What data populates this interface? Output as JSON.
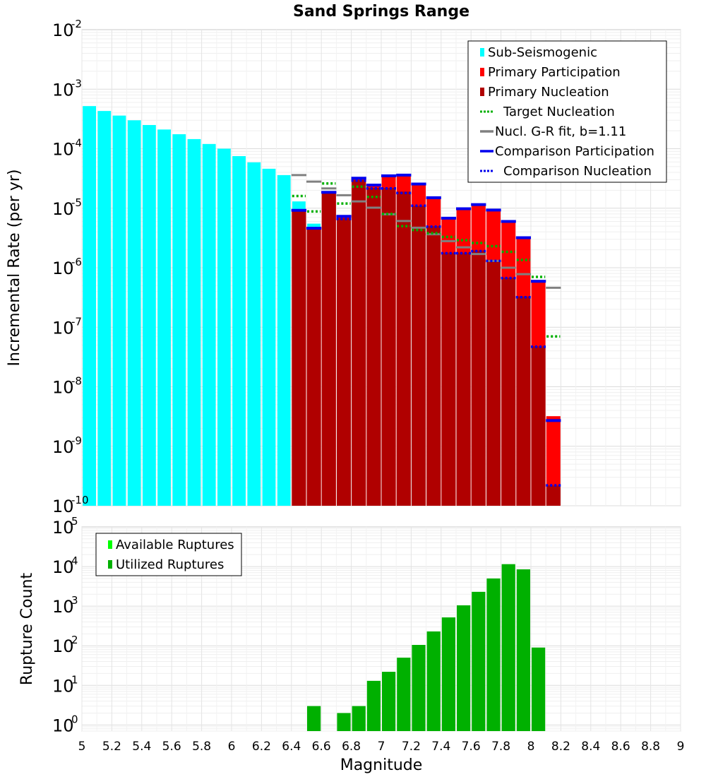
{
  "chart_data": [
    {
      "type": "bar",
      "title": "Sand Springs Range",
      "xlabel": "",
      "ylabel": "Incremental Rate (per yr)",
      "yscale": "log",
      "ylim": [
        1e-10,
        0.01
      ],
      "xlim": [
        5,
        9
      ],
      "y_ticks": [
        {
          "base": "10",
          "exp": "-10"
        },
        {
          "base": "10",
          "exp": "-9"
        },
        {
          "base": "10",
          "exp": "-8"
        },
        {
          "base": "10",
          "exp": "-7"
        },
        {
          "base": "10",
          "exp": "-6"
        },
        {
          "base": "10",
          "exp": "-5"
        },
        {
          "base": "10",
          "exp": "-4"
        },
        {
          "base": "10",
          "exp": "-3"
        },
        {
          "base": "10",
          "exp": "-2"
        }
      ],
      "legend": {
        "location": "top-right",
        "entries": [
          {
            "label": "Sub-Seismogenic",
            "color": "#00ffff",
            "style": "bar"
          },
          {
            "label": "Primary Participation",
            "color": "#ff0000",
            "style": "bar"
          },
          {
            "label": "Primary Nucleation",
            "color": "#b00000",
            "style": "bar"
          },
          {
            "label": "Target Nucleation",
            "color": "#00b000",
            "style": "dotted"
          },
          {
            "label": "Nucl. G-R fit, b=1.11",
            "color": "#808080",
            "style": "solid"
          },
          {
            "label": "Comparison Participation",
            "color": "#0000ee",
            "style": "solid"
          },
          {
            "label": "Comparison Nucleation",
            "color": "#0000ee",
            "style": "dotted"
          }
        ]
      },
      "series": [
        {
          "name": "Sub-Seismogenic",
          "color": "#00ffff",
          "x": [
            5.05,
            5.15,
            5.25,
            5.35,
            5.45,
            5.55,
            5.65,
            5.75,
            5.85,
            5.95,
            6.05,
            6.15,
            6.25,
            6.35,
            6.45,
            6.55
          ],
          "values": [
            0.00052,
            0.00043,
            0.00036,
            0.0003,
            0.00025,
            0.00021,
            0.000175,
            0.000145,
            0.00012,
            0.0001,
            7.5e-05,
            5.9e-05,
            4.6e-05,
            3.6e-05,
            1.3e-05,
            5.5e-06
          ]
        },
        {
          "name": "Primary Participation",
          "color": "#ff0000",
          "x": [
            6.45,
            6.55,
            6.65,
            6.75,
            6.85,
            6.95,
            7.05,
            7.15,
            7.25,
            7.35,
            7.45,
            7.55,
            7.65,
            7.75,
            7.85,
            7.95,
            8.05,
            8.15
          ],
          "values": [
            9.5e-06,
            4.7e-06,
            1.9e-05,
            7.5e-06,
            3.3e-05,
            2.5e-05,
            3.6e-05,
            3.7e-05,
            2.6e-05,
            1.55e-05,
            7e-06,
            1e-05,
            1.15e-05,
            9.5e-06,
            6.2e-06,
            3.3e-06,
            6e-07,
            3.2e-09
          ]
        },
        {
          "name": "Primary Nucleation",
          "color": "#b00000",
          "x": [
            6.45,
            6.55,
            6.65,
            6.75,
            6.85,
            6.95,
            7.05,
            7.15,
            7.25,
            7.35,
            7.45,
            7.55,
            7.65,
            7.75,
            7.85,
            7.95,
            8.05,
            8.15
          ],
          "values": [
            9.5e-06,
            4.7e-06,
            1.9e-05,
            6.8e-06,
            3e-05,
            2.2e-05,
            2.2e-05,
            1.9e-05,
            1.1e-05,
            5e-06,
            1.8e-06,
            1.8e-06,
            1.95e-06,
            1.3e-06,
            6.8e-07,
            3.3e-07,
            4.8e-08,
            2.2e-10
          ]
        },
        {
          "name": "Target Nucleation",
          "color": "#00b000",
          "x": [
            6.45,
            6.55,
            6.65,
            6.75,
            6.85,
            6.95,
            7.05,
            7.15,
            7.25,
            7.35,
            7.45,
            7.55,
            7.65,
            7.75,
            7.85,
            7.95,
            8.05,
            8.15
          ],
          "values": [
            1.6e-05,
            8.8e-06,
            2.6e-05,
            1.2e-05,
            2.3e-05,
            1.55e-05,
            8e-06,
            5e-06,
            4.3e-06,
            3.8e-06,
            3.3e-06,
            2.9e-06,
            2.6e-06,
            2.3e-06,
            1.85e-06,
            1.35e-06,
            7e-07,
            7e-08
          ]
        },
        {
          "name": "Nucl. G-R fit, b=1.11",
          "color": "#808080",
          "x": [
            6.45,
            6.55,
            6.65,
            6.75,
            6.85,
            6.95,
            7.05,
            7.15,
            7.25,
            7.35,
            7.45,
            7.55,
            7.65,
            7.75,
            7.85,
            7.95,
            8.05,
            8.15
          ],
          "values": [
            3.6e-05,
            2.8e-05,
            2.15e-05,
            1.65e-05,
            1.3e-05,
            1.02e-05,
            7.9e-06,
            6.1e-06,
            4.7e-06,
            3.65e-06,
            2.8e-06,
            2.2e-06,
            1.7e-06,
            1.3e-06,
            1e-06,
            7.8e-07,
            6e-07,
            4.6e-07
          ]
        },
        {
          "name": "Comparison Participation",
          "color": "#0000ee",
          "x": [
            6.45,
            6.55,
            6.65,
            6.75,
            6.85,
            6.95,
            7.05,
            7.15,
            7.25,
            7.35,
            7.45,
            7.55,
            7.65,
            7.75,
            7.85,
            7.95,
            8.05,
            8.15
          ],
          "values": [
            9.2e-06,
            4.6e-06,
            1.85e-05,
            7.3e-06,
            3.2e-05,
            2.45e-05,
            3.5e-05,
            3.6e-05,
            2.55e-05,
            1.5e-05,
            6.8e-06,
            9.8e-06,
            1.15e-05,
            9.3e-06,
            6e-06,
            3.2e-06,
            5.9e-07,
            2.7e-09
          ]
        },
        {
          "name": "Comparison Nucleation",
          "color": "#0000ee",
          "x": [
            6.45,
            6.55,
            6.65,
            6.75,
            6.85,
            6.95,
            7.05,
            7.15,
            7.25,
            7.35,
            7.45,
            7.55,
            7.65,
            7.75,
            7.85,
            7.95,
            8.05,
            8.15
          ],
          "values": [
            9.2e-06,
            4.6e-06,
            1.85e-05,
            6.6e-06,
            2.9e-05,
            2.15e-05,
            2.15e-05,
            1.8e-05,
            1.1e-05,
            4.9e-06,
            1.75e-06,
            1.75e-06,
            1.9e-06,
            1.3e-06,
            6.7e-07,
            3.2e-07,
            4.7e-08,
            2.2e-10
          ]
        }
      ]
    },
    {
      "type": "bar",
      "title": "",
      "xlabel": "Magnitude",
      "ylabel": "Rupture Count",
      "yscale": "log",
      "ylim": [
        0.7,
        100000
      ],
      "xlim": [
        5,
        9
      ],
      "x_ticks": [
        "5",
        "5.2",
        "5.4",
        "5.6",
        "5.8",
        "6",
        "6.2",
        "6.4",
        "6.6",
        "6.8",
        "7",
        "7.2",
        "7.4",
        "7.6",
        "7.8",
        "8",
        "8.2",
        "8.4",
        "8.6",
        "8.8",
        "9"
      ],
      "x_tick_values": [
        5,
        5.2,
        5.4,
        5.6,
        5.8,
        6,
        6.2,
        6.4,
        6.6,
        6.8,
        7,
        7.2,
        7.4,
        7.6,
        7.8,
        8,
        8.2,
        8.4,
        8.6,
        8.8,
        9
      ],
      "y_ticks": [
        {
          "base": "10",
          "exp": "0"
        },
        {
          "base": "10",
          "exp": "1"
        },
        {
          "base": "10",
          "exp": "2"
        },
        {
          "base": "10",
          "exp": "3"
        },
        {
          "base": "10",
          "exp": "4"
        },
        {
          "base": "10",
          "exp": "5"
        }
      ],
      "legend": {
        "location": "top-left",
        "entries": [
          {
            "label": "Available Ruptures",
            "color": "#00ff00",
            "style": "bar"
          },
          {
            "label": "Utilized Ruptures",
            "color": "#00b000",
            "style": "bar"
          }
        ]
      },
      "series": [
        {
          "name": "Utilized Ruptures",
          "color": "#00b000",
          "x": [
            6.55,
            6.75,
            6.85,
            6.95,
            7.05,
            7.15,
            7.25,
            7.35,
            7.45,
            7.55,
            7.65,
            7.75,
            7.85,
            7.95,
            8.05
          ],
          "values": [
            3,
            2,
            3,
            13,
            22,
            50,
            105,
            230,
            520,
            1050,
            2300,
            5000,
            11500,
            8500,
            90
          ]
        }
      ]
    }
  ]
}
